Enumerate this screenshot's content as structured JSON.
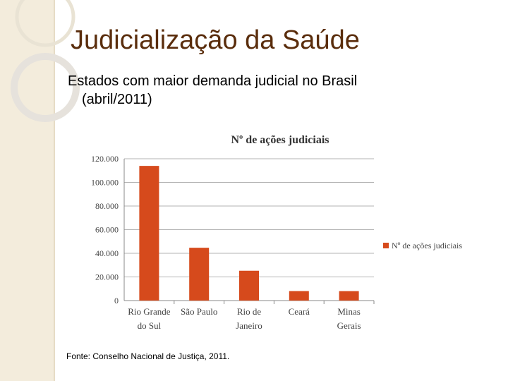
{
  "slide": {
    "title": "Judicialização da Saúde",
    "subtitle_line1": "Estados com maior demanda judicial no Brasil",
    "subtitle_line2": "(abril/2011)",
    "source": "Fonte: Conselho Nacional de Justiça, 2011."
  },
  "colors": {
    "bar": "#d64a1c",
    "title": "#5a2d0c",
    "sidebar": "#f3ecdc"
  },
  "chart_data": {
    "type": "bar",
    "title": "Nº de ações judiciais",
    "categories": [
      [
        "Rio Grande",
        "do Sul"
      ],
      [
        "São Paulo"
      ],
      [
        "Rio de",
        "Janeiro"
      ],
      [
        "Ceará"
      ],
      [
        "Minas",
        "Gerais"
      ]
    ],
    "series": [
      {
        "name": "Nº de ações judiciais",
        "values": [
          113953,
          44690,
          25234,
          8036,
          8000
        ]
      }
    ],
    "yticks": [
      "0",
      "20.000",
      "40.000",
      "60.000",
      "80.000",
      "100.000",
      "120.000"
    ],
    "ylim": [
      0,
      120000
    ],
    "grid": true,
    "legend": "right"
  }
}
